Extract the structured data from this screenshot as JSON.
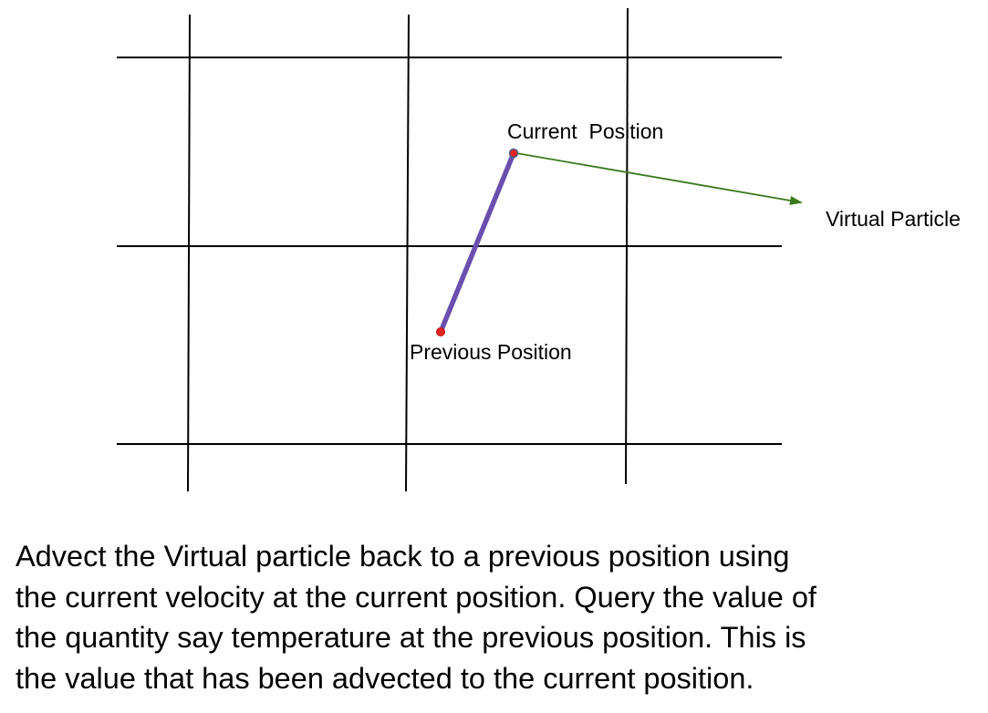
{
  "diagram": {
    "labels": {
      "current_position": "Current  Position",
      "previous_position": "Previous Position",
      "virtual_particle": "Virtual Particle"
    },
    "colors": {
      "grid": "#000000",
      "trajectory": "#6a4fae",
      "velocity_arrow": "#3a7a1e",
      "point": "#e8231f",
      "point_outline": "#4a5f8a"
    }
  },
  "caption": {
    "lines": [
      "Advect the Virtual particle back to a previous position using",
      "the current velocity at the current position. Query the value of",
      "the quantity say temperature at the previous position. This is",
      "the value that has been advected to the current position."
    ]
  }
}
